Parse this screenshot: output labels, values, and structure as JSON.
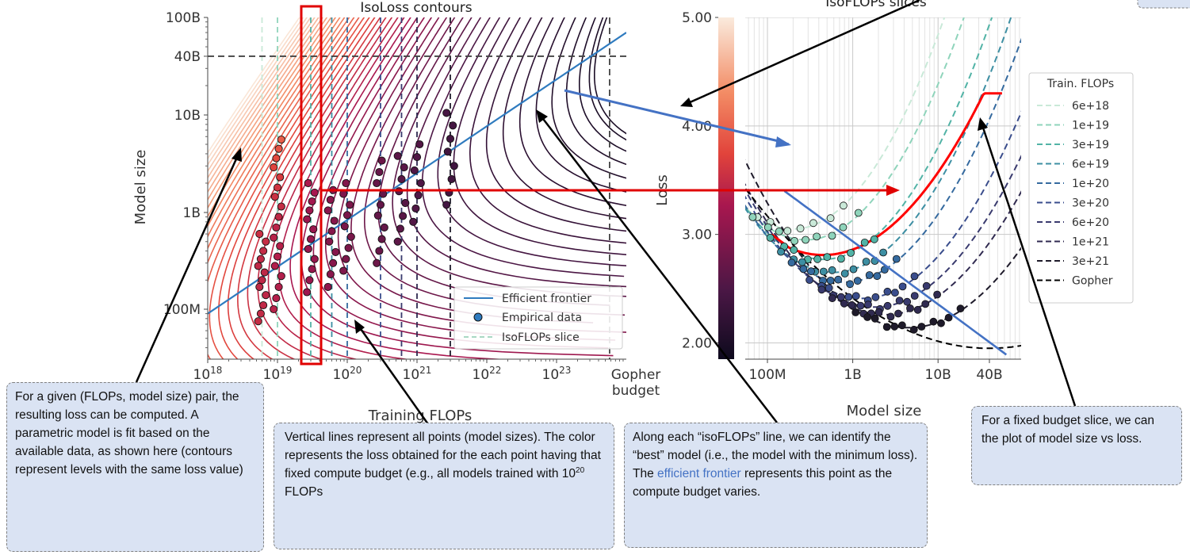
{
  "chart_data": [
    {
      "type": "scatter",
      "title": "IsoLoss contours",
      "xlabel": "Training FLOPs",
      "ylabel": "Model size",
      "x_scale": "log",
      "y_scale": "log",
      "xlim": [
        1e+18,
        1e+24
      ],
      "ylim": [
        40000000,
        100000000000
      ],
      "x_tick_labels": [
        "10^18",
        "10^19",
        "10^20",
        "10^21",
        "10^22",
        "10^23"
      ],
      "extra_x_tick_label": [
        "Gopher",
        "budget"
      ],
      "y_tick_labels": [
        "100B",
        "40B",
        "10B",
        "1B",
        "100M"
      ],
      "reference_lines": {
        "gopher_flops": 5.76e+23,
        "gopher_params": 40000000000,
        "gopher_flops_tick": 3e+23
      },
      "legend": {
        "placement": "lower-right",
        "entries": [
          "Efficient frontier",
          "Empirical data",
          "IsoFLOPs slice"
        ]
      },
      "efficient_frontier": {
        "x": [
          1e+18,
          1e+24
        ],
        "y": [
          90000000,
          70000000000
        ]
      },
      "isoflops_slices": [
        6e+18,
        1e+19,
        3e+19,
        6e+19,
        1e+20,
        3e+20,
        6e+20,
        1e+21,
        3e+21
      ],
      "empirical_data": [
        {
          "flops": 6e+18,
          "sizes_M": [
            75,
            90,
            110,
            140,
            170,
            200,
            240,
            280,
            330,
            400,
            500,
            600
          ]
        },
        {
          "flops": 1e+19,
          "sizes_M": [
            100,
            130,
            170,
            220,
            280,
            350,
            450,
            550,
            700,
            900,
            1150,
            1450,
            1800,
            2300,
            2900,
            3600,
            4500,
            5600
          ]
        },
        {
          "flops": 3e+19,
          "sizes_M": [
            150,
            200,
            260,
            330,
            420,
            530,
            670,
            850,
            1050,
            1300,
            1600,
            2000
          ]
        },
        {
          "flops": 6e+19,
          "sizes_M": [
            170,
            230,
            300,
            390,
            500,
            640,
            820,
            1050,
            1350,
            1700
          ]
        },
        {
          "flops": 1e+20,
          "sizes_M": [
            250,
            330,
            430,
            560,
            720,
            940,
            1200,
            1550,
            2000
          ]
        },
        {
          "flops": 3e+20,
          "sizes_M": [
            300,
            400,
            530,
            700,
            930,
            1200,
            1550,
            2000,
            2600,
            3400
          ]
        },
        {
          "flops": 6e+20,
          "sizes_M": [
            500,
            680,
            920,
            1250,
            1650,
            2200,
            2900,
            3800
          ]
        },
        {
          "flops": 1e+21,
          "sizes_M": [
            800,
            1100,
            1500,
            2000,
            2700,
            3700,
            5000
          ]
        },
        {
          "flops": 3e+21,
          "sizes_M": [
            1200,
            1600,
            2200,
            3000,
            4200,
            5700,
            7800,
            10500
          ]
        }
      ],
      "colorbar": {
        "label": "Loss",
        "range": [
          1.85,
          5.0
        ],
        "tick_labels": [
          "5.00",
          "4.00",
          "3.00",
          "2.00"
        ]
      }
    },
    {
      "type": "line",
      "title": "IsoFLOPs slices",
      "xlabel": "Model size",
      "ylabel": "Loss",
      "x_scale": "log",
      "xlim": [
        60000000,
        100000000000
      ],
      "ylim": [
        1.85,
        5.0
      ],
      "x_tick_labels": [
        "100M",
        "1B",
        "10B",
        "40B"
      ],
      "legend": {
        "title": "Train. FLOPs",
        "placement": "right"
      },
      "series": [
        {
          "name": "6e+18",
          "color": "#c9e9d8",
          "approx_min": {
            "params_M": 200,
            "loss": 3.05
          }
        },
        {
          "name": "1e+19",
          "color": "#8fd4bb",
          "approx_min": {
            "params_M": 280,
            "loss": 2.95
          }
        },
        {
          "name": "3e+19",
          "color": "#52b3a6",
          "approx_min": {
            "params_M": 450,
            "loss": 2.77
          }
        },
        {
          "name": "6e+19",
          "color": "#3d8fa3",
          "approx_min": {
            "params_M": 600,
            "loss": 2.65
          }
        },
        {
          "name": "1e+20",
          "color": "#356a9f",
          "approx_min": {
            "params_M": 800,
            "loss": 2.56
          }
        },
        {
          "name": "3e+20",
          "color": "#3a4d8c",
          "approx_min": {
            "params_M": 1300,
            "loss": 2.41
          }
        },
        {
          "name": "6e+20",
          "color": "#393a6e",
          "approx_min": {
            "params_M": 1800,
            "loss": 2.33
          }
        },
        {
          "name": "1e+21",
          "color": "#302a50",
          "approx_min": {
            "params_M": 2400,
            "loss": 2.26
          }
        },
        {
          "name": "3e+21",
          "color": "#1e1a2a",
          "approx_min": {
            "params_M": 4500,
            "loss": 2.14
          }
        },
        {
          "name": "Gopher",
          "color": "#000000",
          "approx_min": {
            "params_M": 40000,
            "loss": 1.95
          }
        }
      ],
      "highlighted_slice": {
        "color": "#ff0000",
        "loss_start": 3.0,
        "min_loss": 2.81,
        "min_params_M": 450,
        "loss_end": 4.3
      }
    }
  ],
  "callouts": {
    "param_model": "For a given (FLOPs, model size) pair, the resulting loss can be computed. A parametric model is fit based on the available data, as shown here (contours represent levels with the same loss value)",
    "vertical_lines_a": "Vertical lines represent all points (model sizes). The color represents the loss obtained for the each point having that fixed compute budget (e.g., all models trained with 10",
    "vertical_lines_sup": "20",
    "vertical_lines_b": " FLOPs",
    "isoflops_a": "Along each “isoFLOPs” line, we can identify the “best” model (i.e., the model with the minimum loss). The ",
    "isoflops_link": "efficient frontier",
    "isoflops_b": " represents this point as the compute budget varies.",
    "fixed_budget": "For a fixed budget slice, we can the plot of model size vs loss."
  }
}
